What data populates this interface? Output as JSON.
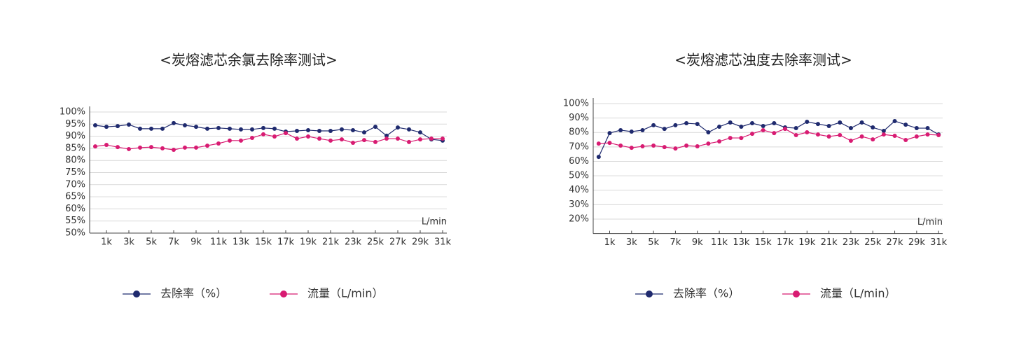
{
  "chart_data": [
    {
      "type": "line",
      "title": "<炭熔滤芯余氯去除率测试>",
      "x_unit_label": "L/min",
      "x": [
        0,
        1,
        2,
        3,
        4,
        5,
        6,
        7,
        8,
        9,
        10,
        11,
        12,
        13,
        14,
        15,
        16,
        17,
        18,
        19,
        20,
        21,
        22,
        23,
        24,
        25,
        26,
        27,
        28,
        29,
        30,
        31
      ],
      "xlim": [
        -0.5,
        31.5
      ],
      "xticks": [
        {
          "value": 1,
          "label": "1k"
        },
        {
          "value": 3,
          "label": "3k"
        },
        {
          "value": 5,
          "label": "5k"
        },
        {
          "value": 7,
          "label": "7k"
        },
        {
          "value": 9,
          "label": "9k"
        },
        {
          "value": 11,
          "label": "11k"
        },
        {
          "value": 13,
          "label": "13k"
        },
        {
          "value": 15,
          "label": "15k"
        },
        {
          "value": 17,
          "label": "17k"
        },
        {
          "value": 19,
          "label": "19k"
        },
        {
          "value": 21,
          "label": "21k"
        },
        {
          "value": 23,
          "label": "23k"
        },
        {
          "value": 25,
          "label": "25k"
        },
        {
          "value": 27,
          "label": "27k"
        },
        {
          "value": 29,
          "label": "29k"
        },
        {
          "value": 31,
          "label": "31k"
        }
      ],
      "ylim": [
        50,
        100
      ],
      "yticks": [
        {
          "value": 50,
          "label": "50%"
        },
        {
          "value": 55,
          "label": "55%"
        },
        {
          "value": 60,
          "label": "60%"
        },
        {
          "value": 65,
          "label": "65%"
        },
        {
          "value": 70,
          "label": "70%"
        },
        {
          "value": 75,
          "label": "75%"
        },
        {
          "value": 80,
          "label": "80%"
        },
        {
          "value": 85,
          "label": "85%"
        },
        {
          "value": 90,
          "label": "90%"
        },
        {
          "value": 95,
          "label": "95%"
        },
        {
          "value": 100,
          "label": "100%"
        }
      ],
      "grid": true,
      "series": [
        {
          "name": "去除率（%）",
          "color": "#1f2a6e",
          "values": [
            94.5,
            93.9,
            94.2,
            94.8,
            93.1,
            93.1,
            93.1,
            95.4,
            94.5,
            93.9,
            93.1,
            93.4,
            93.1,
            92.8,
            92.8,
            93.4,
            93.1,
            91.9,
            92.2,
            92.5,
            92.2,
            92.2,
            92.8,
            92.5,
            91.6,
            93.9,
            90.2,
            93.6,
            92.8,
            91.6,
            88.7,
            88.2
          ]
        },
        {
          "name": "流量（L/min）",
          "color": "#d81b72",
          "values": [
            85.8,
            86.4,
            85.5,
            84.7,
            85.3,
            85.5,
            85.0,
            84.4,
            85.3,
            85.3,
            86.1,
            87.0,
            88.2,
            88.2,
            89.3,
            90.8,
            89.9,
            91.3,
            89.0,
            89.9,
            89.0,
            88.2,
            88.7,
            87.3,
            88.4,
            87.6,
            89.0,
            89.0,
            87.6,
            88.7,
            89.0,
            89.0
          ]
        }
      ]
    },
    {
      "type": "line",
      "title": "<炭熔滤芯浊度去除率测试>",
      "x_unit_label": "L/min",
      "x": [
        0,
        1,
        2,
        3,
        4,
        5,
        6,
        7,
        8,
        9,
        10,
        11,
        12,
        13,
        14,
        15,
        16,
        17,
        18,
        19,
        20,
        21,
        22,
        23,
        24,
        25,
        26,
        27,
        28,
        29,
        30,
        31
      ],
      "xlim": [
        -0.5,
        31.5
      ],
      "xticks": [
        {
          "value": 1,
          "label": "1k"
        },
        {
          "value": 3,
          "label": "3k"
        },
        {
          "value": 5,
          "label": "5k"
        },
        {
          "value": 7,
          "label": "7k"
        },
        {
          "value": 9,
          "label": "9k"
        },
        {
          "value": 11,
          "label": "11k"
        },
        {
          "value": 13,
          "label": "13k"
        },
        {
          "value": 15,
          "label": "15k"
        },
        {
          "value": 17,
          "label": "17k"
        },
        {
          "value": 19,
          "label": "19k"
        },
        {
          "value": 21,
          "label": "21k"
        },
        {
          "value": 23,
          "label": "23k"
        },
        {
          "value": 25,
          "label": "25k"
        },
        {
          "value": 27,
          "label": "27k"
        },
        {
          "value": 29,
          "label": "29k"
        },
        {
          "value": 31,
          "label": "31k"
        }
      ],
      "ylim": [
        10,
        100
      ],
      "yticks": [
        {
          "value": 20,
          "label": "20%"
        },
        {
          "value": 30,
          "label": "30%"
        },
        {
          "value": 40,
          "label": "40%"
        },
        {
          "value": 50,
          "label": "50%"
        },
        {
          "value": 60,
          "label": "60%"
        },
        {
          "value": 70,
          "label": "70%"
        },
        {
          "value": 80,
          "label": "80%"
        },
        {
          "value": 90,
          "label": "90%"
        },
        {
          "value": 100,
          "label": "100%"
        }
      ],
      "grid": true,
      "series": [
        {
          "name": "去除率（%）",
          "color": "#1f2a6e",
          "values": [
            63.1,
            79.6,
            81.6,
            80.6,
            81.6,
            85.0,
            82.5,
            85.0,
            86.4,
            85.9,
            80.1,
            84.0,
            86.9,
            84.0,
            86.4,
            84.5,
            86.4,
            83.5,
            83.0,
            87.4,
            85.9,
            84.5,
            86.9,
            83.0,
            86.9,
            83.5,
            81.1,
            87.9,
            85.4,
            83.0,
            83.0,
            78.6
          ]
        },
        {
          "name": "流量（L/min）",
          "color": "#d81b72",
          "values": [
            72.3,
            72.8,
            70.9,
            69.4,
            70.4,
            70.9,
            69.9,
            68.9,
            70.9,
            70.4,
            72.3,
            73.8,
            76.2,
            76.2,
            79.1,
            81.6,
            79.6,
            82.5,
            78.2,
            80.1,
            78.6,
            77.2,
            78.2,
            74.3,
            77.2,
            75.2,
            78.6,
            77.7,
            74.8,
            77.2,
            78.6,
            78.2
          ]
        }
      ]
    }
  ]
}
